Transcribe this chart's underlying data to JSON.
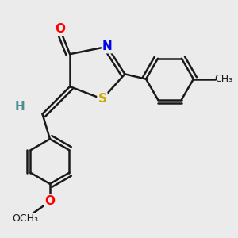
{
  "bg_color": "#ebebeb",
  "bond_color": "#1a1a1a",
  "bond_width": 1.8,
  "atom_colors": {
    "O": "#ff0000",
    "N": "#0000ee",
    "S": "#ccaa00",
    "H": "#4a9090",
    "C": "#1a1a1a"
  },
  "font_size": 11,
  "figsize": [
    3.0,
    3.0
  ],
  "dpi": 100
}
